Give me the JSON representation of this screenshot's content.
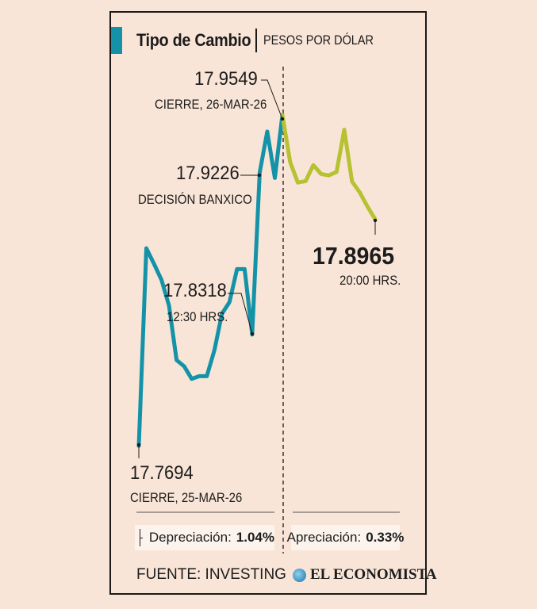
{
  "header": {
    "title": "Tipo de Cambio",
    "subtitle": "PESOS POR DÓLAR"
  },
  "chart_data": {
    "type": "line",
    "title": "Tipo de Cambio",
    "subtitle": "PESOS POR DÓLAR",
    "unit": "PESOS POR DÓLAR",
    "ylim": [
      17.75,
      17.97
    ],
    "series": [
      {
        "color": "#1493a8",
        "values": [
          17.7694,
          17.8802,
          17.8715,
          17.8625,
          17.848,
          17.8175,
          17.814,
          17.807,
          17.8085,
          17.8085,
          17.823,
          17.8435,
          17.85,
          17.8685,
          17.8685,
          17.8318,
          17.9226,
          17.9456,
          17.9196,
          17.9549
        ]
      },
      {
        "color": "#b6c231",
        "values": [
          17.9549,
          17.9285,
          17.917,
          17.9178,
          17.9268,
          17.9218,
          17.921,
          17.923,
          17.9466,
          17.9176,
          17.9115,
          17.9035,
          17.8965
        ]
      }
    ],
    "annotations": [
      {
        "value": "17.7694",
        "label": "CIERRE, 25-MAR-26"
      },
      {
        "value": "17.8318",
        "label": "12:30 HRS."
      },
      {
        "value": "17.9226",
        "label": "DECISIÓN BANXICO"
      },
      {
        "value": "17.9549",
        "label": "CIERRE, 26-MAR-26"
      },
      {
        "value": "17.8965",
        "label": "20:00 HRS."
      }
    ],
    "grid": false
  },
  "footer": {
    "depreciation_label": "Depreciación:",
    "depreciation_value": "1.04%",
    "appreciation_label": "Apreciación:",
    "appreciation_value": "0.33%",
    "source": "FUENTE: INVESTING",
    "logo": "EL ECONOMISTA",
    "logo_icon": "globe-icon"
  }
}
